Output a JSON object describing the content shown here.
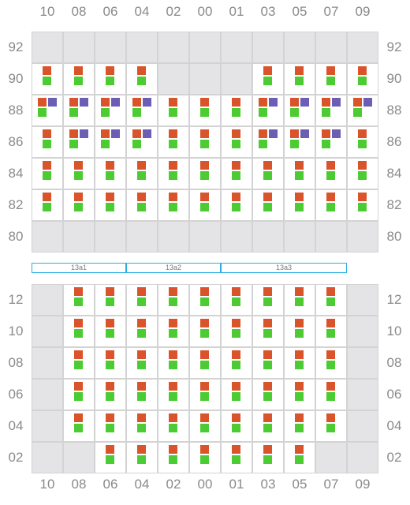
{
  "columns": [
    "10",
    "08",
    "06",
    "04",
    "02",
    "00",
    "01",
    "03",
    "05",
    "07",
    "09"
  ],
  "upper_rows": [
    {
      "label": "92",
      "cells": [
        "E",
        "E",
        "E",
        "E",
        "E",
        "E",
        "E",
        "E",
        "E",
        "E",
        "E"
      ]
    },
    {
      "label": "90",
      "cells": [
        "RG",
        "RG",
        "RG",
        "RG",
        "E",
        "E",
        "E",
        "RG",
        "RG",
        "RG",
        "RG"
      ]
    },
    {
      "label": "88",
      "cells": [
        "RBG",
        "RBG",
        "RBG",
        "RBG",
        "RG",
        "RG",
        "RG",
        "RBG",
        "RBG",
        "RBG",
        "RBG"
      ]
    },
    {
      "label": "86",
      "cells": [
        "RG",
        "RBG",
        "RBG",
        "RBG",
        "RG",
        "RG",
        "RG",
        "RBG",
        "RBG",
        "RBG",
        "RG"
      ]
    },
    {
      "label": "84",
      "cells": [
        "RG",
        "RG",
        "RG",
        "RG",
        "RG",
        "RG",
        "RG",
        "RG",
        "RG",
        "RG",
        "RG"
      ]
    },
    {
      "label": "82",
      "cells": [
        "RG",
        "RG",
        "RG",
        "RG",
        "RG",
        "RG",
        "RG",
        "RG",
        "RG",
        "RG",
        "RG"
      ]
    },
    {
      "label": "80",
      "cells": [
        "E",
        "E",
        "E",
        "E",
        "E",
        "E",
        "E",
        "E",
        "E",
        "E",
        "E"
      ]
    }
  ],
  "zones": [
    {
      "label": "13a1",
      "span": 3
    },
    {
      "label": "13a2",
      "span": 3
    },
    {
      "label": "13a3",
      "span": 4
    }
  ],
  "lower_rows": [
    {
      "label": "12",
      "cells": [
        "E",
        "RG",
        "RG",
        "RG",
        "RG",
        "RG",
        "RG",
        "RG",
        "RG",
        "RG",
        "E"
      ]
    },
    {
      "label": "10",
      "cells": [
        "E",
        "RG",
        "RG",
        "RG",
        "RG",
        "RG",
        "RG",
        "RG",
        "RG",
        "RG",
        "E"
      ]
    },
    {
      "label": "08",
      "cells": [
        "E",
        "RG",
        "RG",
        "RG",
        "RG",
        "RG",
        "RG",
        "RG",
        "RG",
        "RG",
        "E"
      ]
    },
    {
      "label": "06",
      "cells": [
        "E",
        "RG",
        "RG",
        "RG",
        "RG",
        "RG",
        "RG",
        "RG",
        "RG",
        "RG",
        "E"
      ]
    },
    {
      "label": "04",
      "cells": [
        "E",
        "RG",
        "RG",
        "RG",
        "RG",
        "RG",
        "RG",
        "RG",
        "RG",
        "RG",
        "E"
      ]
    },
    {
      "label": "02",
      "cells": [
        "E",
        "E",
        "RG",
        "RG",
        "RG",
        "RG",
        "RG",
        "RG",
        "RG",
        "E",
        "E"
      ]
    }
  ],
  "colors": {
    "red": "#d9532b",
    "green": "#4ccc32",
    "blue": "#6a5fb5",
    "empty": "#e4e4e6",
    "zone_border": "#29b0e0"
  }
}
